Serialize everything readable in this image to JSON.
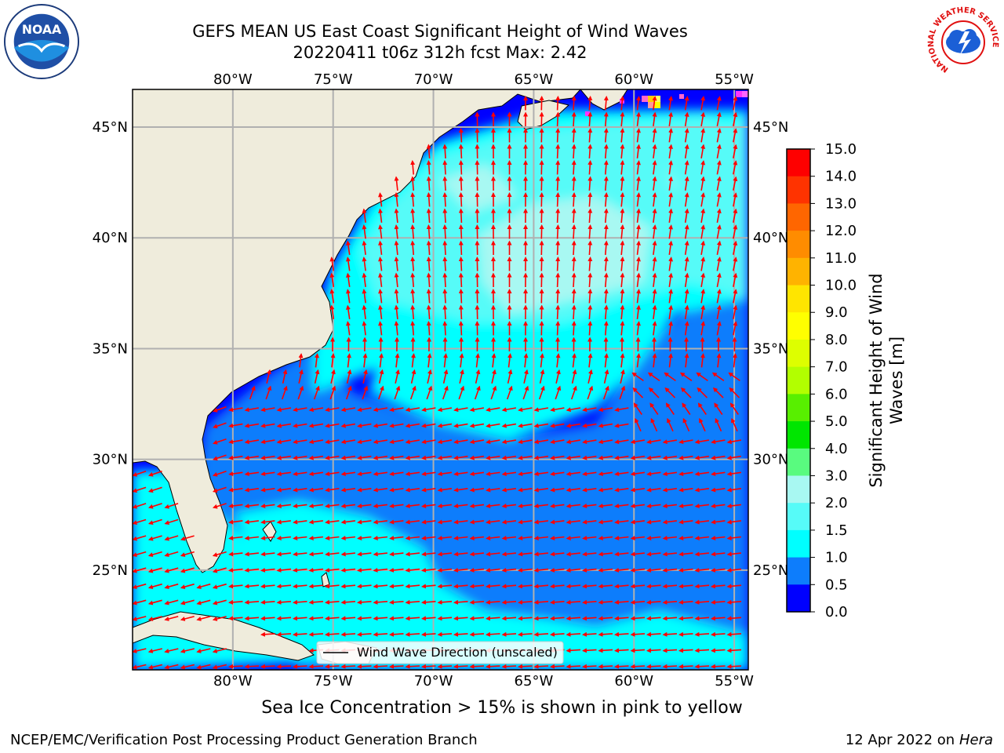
{
  "header": {
    "title_line1": "GEFS MEAN US East Coast Significant Height of Wind Waves",
    "title_line2": "20220411 t06z 312h fcst   Max: 2.42"
  },
  "logos": {
    "left": "noaa-logo",
    "right": "nws-logo",
    "nws_text": "NATIONAL WEATHER SERVICE"
  },
  "map": {
    "lon_labels": [
      "80°W",
      "75°W",
      "70°W",
      "65°W",
      "60°W",
      "55°W"
    ],
    "lon_values": [
      -80,
      -75,
      -70,
      -65,
      -60,
      -55
    ],
    "lat_labels": [
      "45°N",
      "40°N",
      "35°N",
      "30°N",
      "25°N"
    ],
    "lat_values": [
      45,
      40,
      35,
      30,
      25
    ],
    "lon_range": [
      -85,
      -54.3
    ],
    "lat_range": [
      20.5,
      46.7
    ],
    "colors": {
      "land": "#efecdc",
      "wave_0_0.5": "#0000ff",
      "wave_0.5_1": "#0d7dfc",
      "wave_1_1.5": "#00ffff",
      "wave_1.5_2": "#56fbf8",
      "wave_2_3": "#a8f8f2",
      "arrow": "#ff0000",
      "grid": "#b0b0b0"
    },
    "legend_label": "Wind Wave Direction (unscaled)"
  },
  "colorbar": {
    "title_line1": "Significant Height of Wind",
    "title_line2": "Waves [m]",
    "ticks": [
      "15.0",
      "14.0",
      "13.0",
      "12.0",
      "11.0",
      "10.0",
      "9.0",
      "8.0",
      "7.0",
      "6.0",
      "5.0",
      "4.0",
      "3.0",
      "2.0",
      "1.5",
      "1.0",
      "0.5",
      "0.0"
    ],
    "segment_colors": [
      "#fe0000",
      "#ff3300",
      "#ff6600",
      "#ff8c00",
      "#ffb300",
      "#ffe500",
      "#ffff00",
      "#ddff00",
      "#b2ff00",
      "#58ef00",
      "#00e600",
      "#59fb7f",
      "#a8f8f2",
      "#56fbf8",
      "#00ffff",
      "#0d7dfc",
      "#0000ff"
    ]
  },
  "footer": {
    "note": "Sea Ice Concentration > 15% is shown in pink to yellow",
    "left": "NCEP/EMC/Verification Post Processing Product Generation Branch",
    "right_date": "12 Apr 2022 on ",
    "right_host": "Hera"
  }
}
